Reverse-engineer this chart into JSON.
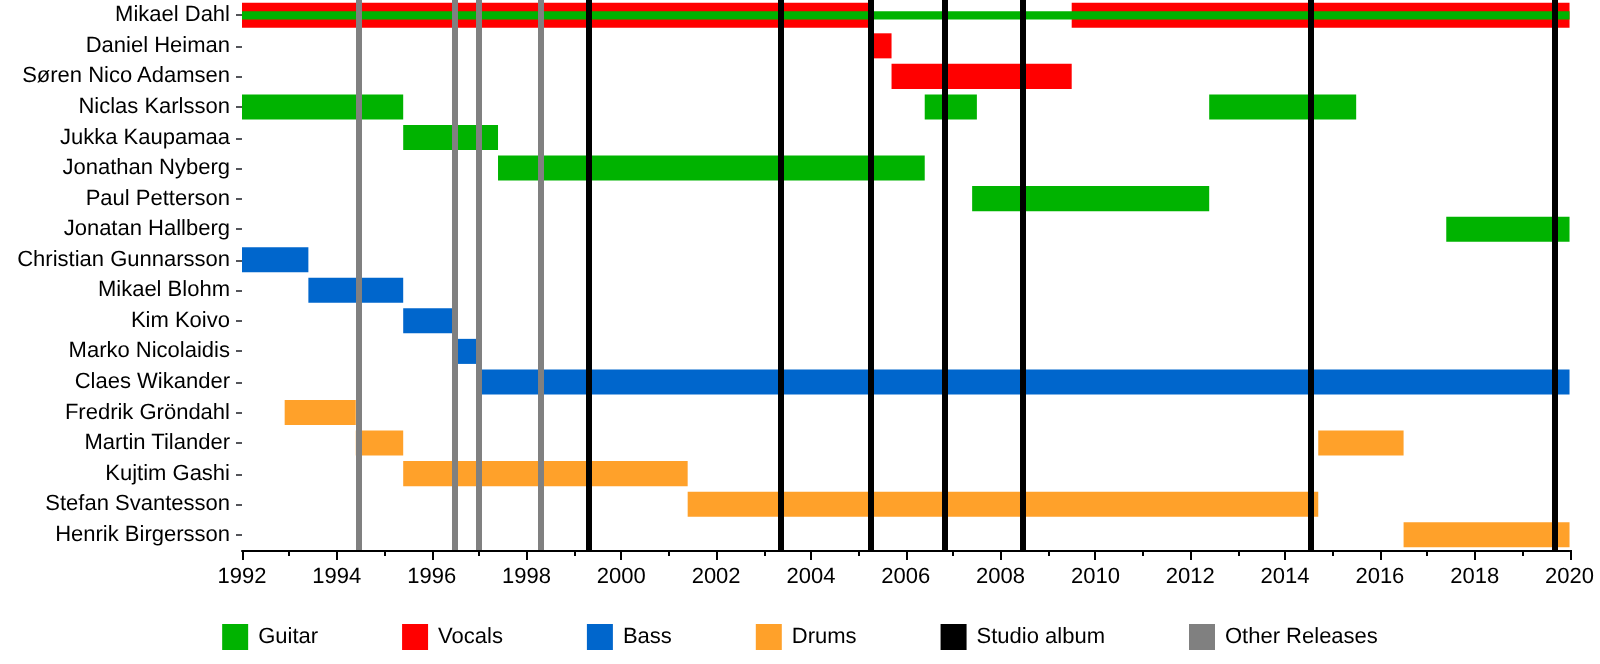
{
  "chart_data": {
    "type": "bar",
    "orientation": "horizontal",
    "categories": [
      "Mikael Dahl",
      "Daniel Heiman",
      "Søren Nico Adamsen",
      "Niclas Karlsson",
      "Jukka Kaupamaa",
      "Jonathan Nyberg",
      "Paul Petterson",
      "Jonatan Hallberg",
      "Christian Gunnarsson",
      "Mikael Blohm",
      "Kim Koivo",
      "Marko Nicolaidis",
      "Claes Wikander",
      "Fredrik Gröndahl",
      "Martin Tilander",
      "Kujtim Gashi",
      "Stefan Svantesson",
      "Henrik Birgersson"
    ],
    "series": [
      {
        "name": "Guitar",
        "color": "#00b300",
        "base": [
          1992,
          null,
          null,
          1992,
          1995.4,
          1997.4,
          2007.4,
          2017.4,
          null,
          null,
          null,
          null,
          null,
          null,
          null,
          null,
          null,
          null
        ],
        "values": [
          28,
          null,
          null,
          3.4,
          2.0,
          9.0,
          5.0,
          2.6,
          null,
          null,
          null,
          null,
          null,
          null,
          null,
          null,
          null,
          null
        ]
      },
      {
        "color": "#00b300",
        "base": [
          null,
          null,
          null,
          2006.4,
          null,
          null,
          null,
          null,
          null,
          null,
          null,
          null,
          null,
          null,
          null,
          null,
          null,
          null
        ],
        "values": [
          null,
          null,
          null,
          1.1,
          null,
          null,
          null,
          null,
          null,
          null,
          null,
          null,
          null,
          null,
          null,
          null,
          null,
          null
        ]
      },
      {
        "color": "#00b300",
        "base": [
          null,
          null,
          null,
          2012.4,
          null,
          null,
          null,
          null,
          null,
          null,
          null,
          null,
          null,
          null,
          null,
          null,
          null,
          null
        ],
        "values": [
          null,
          null,
          null,
          3.1,
          null,
          null,
          null,
          null,
          null,
          null,
          null,
          null,
          null,
          null,
          null,
          null,
          null,
          null
        ]
      },
      {
        "name": "Vocals",
        "color": "#ff0000",
        "base": [
          1992,
          2005.3,
          2005.7,
          null,
          null,
          null,
          null,
          null,
          null,
          null,
          null,
          null,
          null,
          null,
          null,
          null,
          null,
          null
        ],
        "values": [
          13.3,
          0.4,
          3.8,
          null,
          null,
          null,
          null,
          null,
          null,
          null,
          null,
          null,
          null,
          null,
          null,
          null,
          null,
          null
        ]
      },
      {
        "color": "#ff0000",
        "base": [
          2009.5,
          null,
          null,
          null,
          null,
          null,
          null,
          null,
          null,
          null,
          null,
          null,
          null,
          null,
          null,
          null,
          null,
          null
        ],
        "values": [
          10.5,
          null,
          null,
          null,
          null,
          null,
          null,
          null,
          null,
          null,
          null,
          null,
          null,
          null,
          null,
          null,
          null,
          null
        ]
      },
      {
        "name": "Bass",
        "color": "#0066cc",
        "base": [
          null,
          null,
          null,
          null,
          null,
          null,
          null,
          null,
          1992,
          1993.4,
          1995.4,
          1996.5,
          1997,
          null,
          null,
          null,
          null,
          null
        ],
        "values": [
          null,
          null,
          null,
          null,
          null,
          null,
          null,
          null,
          1.4,
          2.0,
          1.1,
          0.5,
          23,
          null,
          null,
          null,
          null,
          null
        ]
      },
      {
        "name": "Drums",
        "color": "#ffa12a",
        "base": [
          null,
          null,
          null,
          null,
          null,
          null,
          null,
          null,
          null,
          null,
          null,
          null,
          null,
          1992.9,
          1994.4,
          1995.4,
          2001.4,
          2016.5
        ],
        "values": [
          null,
          null,
          null,
          null,
          null,
          null,
          null,
          null,
          null,
          null,
          null,
          null,
          null,
          1.5,
          1.0,
          6.0,
          13.3,
          3.5
        ]
      },
      {
        "color": "#ffa12a",
        "base": [
          null,
          null,
          null,
          null,
          null,
          null,
          null,
          null,
          null,
          null,
          null,
          null,
          null,
          null,
          2014.7,
          null,
          null,
          null
        ],
        "values": [
          null,
          null,
          null,
          null,
          null,
          null,
          null,
          null,
          null,
          null,
          null,
          null,
          null,
          null,
          1.8,
          null,
          null,
          null
        ]
      }
    ],
    "ref_lines": [
      {
        "axis": "x",
        "value": 1999.3,
        "label": "Studio album",
        "color": "#000000"
      },
      {
        "axis": "x",
        "value": 2003.35,
        "color": "#000000"
      },
      {
        "axis": "x",
        "value": 2005.25,
        "color": "#000000"
      },
      {
        "axis": "x",
        "value": 2006.8,
        "color": "#000000"
      },
      {
        "axis": "x",
        "value": 2008.45,
        "color": "#000000"
      },
      {
        "axis": "x",
        "value": 2014.55,
        "color": "#000000"
      },
      {
        "axis": "x",
        "value": 2019.7,
        "color": "#000000"
      },
      {
        "axis": "x",
        "value": 1994.45,
        "label": "Other Releases",
        "color": "#808080"
      },
      {
        "axis": "x",
        "value": 1996.5,
        "color": "#808080"
      },
      {
        "axis": "x",
        "value": 1997.0,
        "color": "#808080"
      },
      {
        "axis": "x",
        "value": 1998.3,
        "color": "#808080"
      }
    ],
    "xlim": [
      1992,
      2020
    ],
    "xticks": [
      1992,
      1994,
      1996,
      1998,
      2000,
      2002,
      2004,
      2006,
      2008,
      2010,
      2012,
      2014,
      2016,
      2018,
      2020
    ],
    "grid": false,
    "legend": "bottom"
  }
}
